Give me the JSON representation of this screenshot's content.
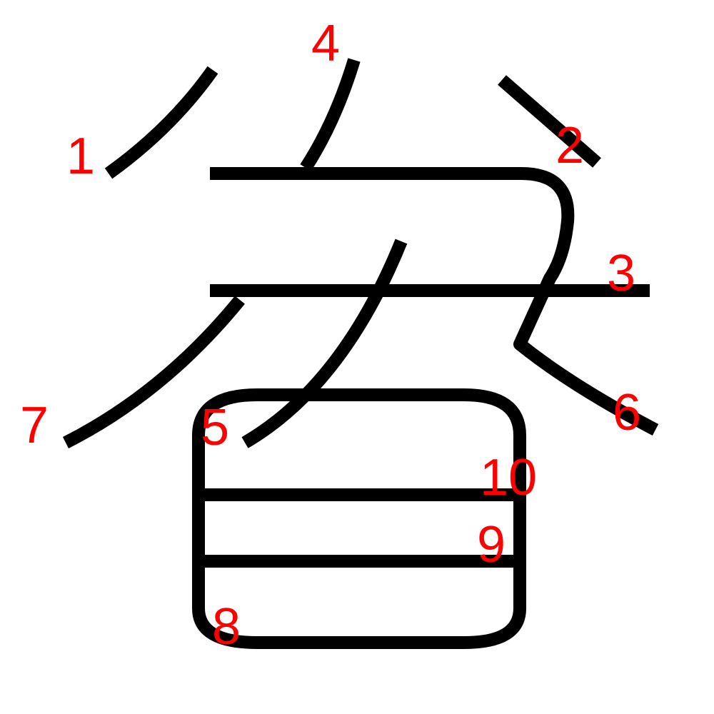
{
  "colors": {
    "stroke": "#000000",
    "label": "#ff0000",
    "background": "#ffffff"
  },
  "strokes": [
    {
      "order": "1",
      "name": "stroke-1"
    },
    {
      "order": "2",
      "name": "stroke-2"
    },
    {
      "order": "3",
      "name": "stroke-3"
    },
    {
      "order": "4",
      "name": "stroke-4"
    },
    {
      "order": "5",
      "name": "stroke-5"
    },
    {
      "order": "6",
      "name": "stroke-6"
    },
    {
      "order": "7",
      "name": "stroke-7"
    },
    {
      "order": "8",
      "name": "stroke-8"
    },
    {
      "order": "9",
      "name": "stroke-9"
    },
    {
      "order": "10",
      "name": "stroke-10"
    }
  ]
}
